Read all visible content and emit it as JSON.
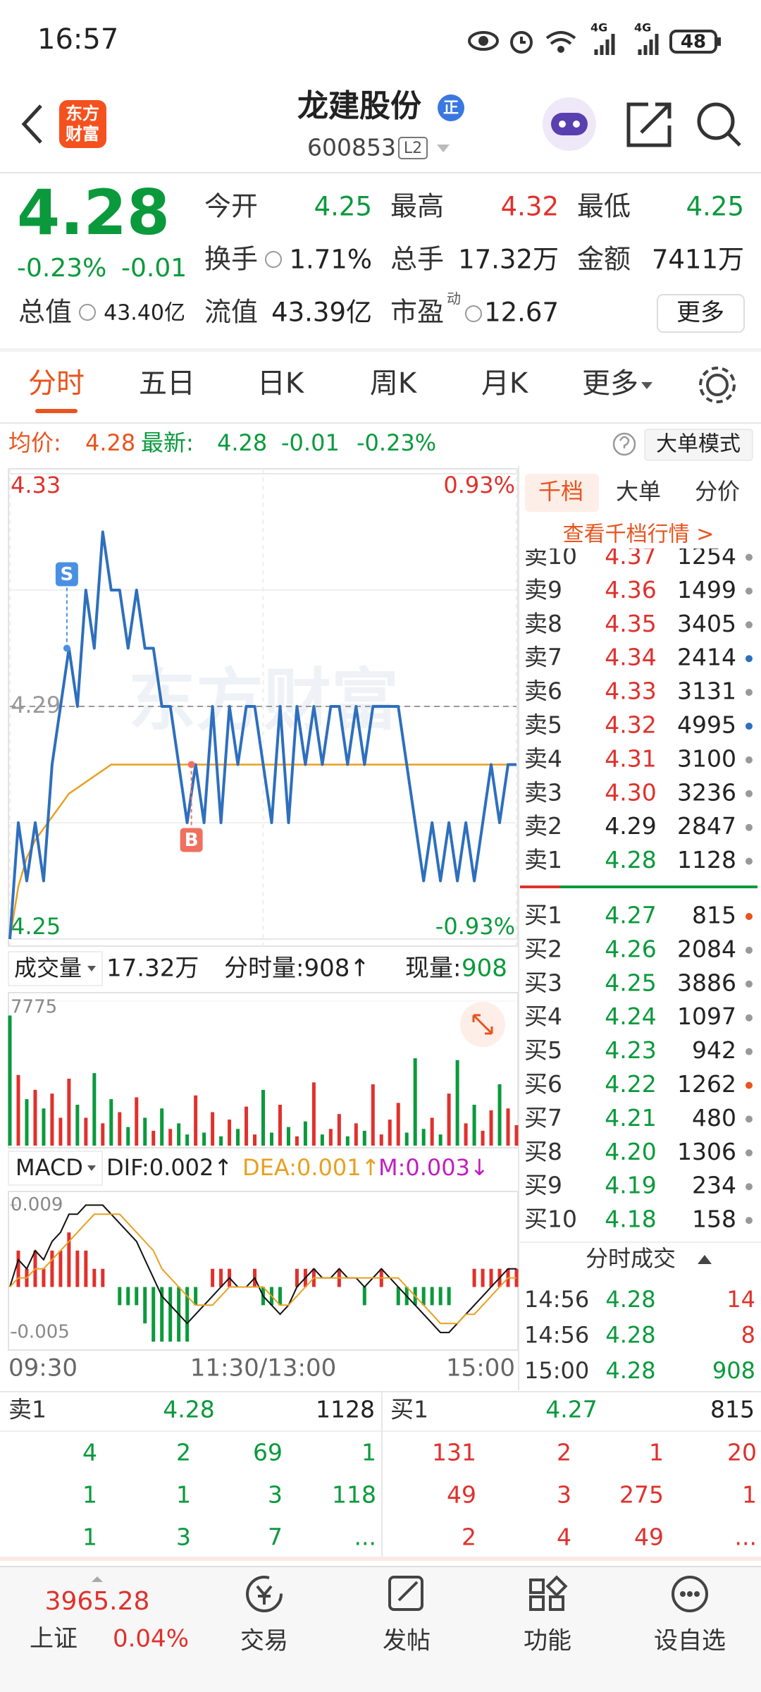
{
  "status_bar": {
    "time": "16:57",
    "network": [
      "4G",
      "4G"
    ],
    "battery": "48"
  },
  "header": {
    "logo": [
      "东方",
      "财富"
    ],
    "title": "龙建股份",
    "badge": "正",
    "code": "600853",
    "level": "L2"
  },
  "quote": {
    "price": "4.28",
    "change_pct": "-0.23%",
    "change": "-0.01",
    "fields": [
      {
        "label": "今开",
        "value": "4.25",
        "color": "#0a9a3c"
      },
      {
        "label": "最高",
        "value": "4.32",
        "color": "#e0312c"
      },
      {
        "label": "最低",
        "value": "4.25",
        "color": "#0a9a3c"
      },
      {
        "label": "换手",
        "value": "1.71%"
      },
      {
        "label": "总手",
        "value": "17.32万"
      },
      {
        "label": "金额",
        "value": "7411万"
      },
      {
        "label": "总值",
        "value": "43.40亿"
      },
      {
        "label": "流值",
        "value": "43.39亿"
      },
      {
        "label": "市盈",
        "sup": "动",
        "value": "12.67"
      }
    ],
    "more": "更多"
  },
  "tabs": {
    "items": [
      "分时",
      "五日",
      "日K",
      "周K",
      "月K",
      "更多"
    ],
    "active": 0
  },
  "info_line": {
    "avg_label": "均价:",
    "avg": "4.28",
    "latest_label": "最新:",
    "latest": "4.28",
    "change": "-0.01",
    "pct": "-0.23%",
    "mode": "大单模式"
  },
  "watermark": "东方财富",
  "chart_data": [
    {
      "type": "line",
      "x": [
        0,
        4,
        8,
        12,
        16,
        20,
        24,
        28,
        32,
        36,
        40,
        44,
        48,
        52,
        56,
        60,
        64,
        68,
        72,
        76,
        80,
        84,
        88,
        92,
        96,
        100,
        104,
        108,
        112,
        116,
        120,
        124,
        128,
        132,
        136,
        140,
        144,
        148,
        152,
        156,
        160,
        164,
        168,
        172,
        176,
        180,
        184,
        188,
        192,
        196,
        200,
        204,
        208,
        212,
        216,
        220,
        224,
        228,
        232,
        236,
        240
      ],
      "xlim": [
        0,
        240
      ],
      "xticks": [
        {
          "value": 0,
          "label": "09:30"
        },
        {
          "value": 120,
          "label": "11:30/13:00"
        },
        {
          "value": 240,
          "label": "15:00"
        }
      ],
      "ylim": [
        4.25,
        4.33
      ],
      "yticks": [
        4.25,
        4.29,
        4.33
      ],
      "y2lim": [
        -0.93,
        0.93
      ],
      "y2ticks": [
        {
          "value": -0.93,
          "label": "-0.93%"
        },
        {
          "value": 0.93,
          "label": "0.93%"
        }
      ],
      "series": [
        {
          "color": "#2e6fbe",
          "values": [
            4.25,
            4.27,
            4.26,
            4.27,
            4.26,
            4.28,
            4.29,
            4.3,
            4.29,
            4.31,
            4.3,
            4.32,
            4.31,
            4.31,
            4.3,
            4.31,
            4.3,
            4.3,
            4.29,
            4.29,
            4.28,
            4.27,
            4.28,
            4.27,
            4.29,
            4.27,
            4.29,
            4.28,
            4.29,
            4.29,
            4.28,
            4.27,
            4.29,
            4.27,
            4.29,
            4.28,
            4.29,
            4.28,
            4.29,
            4.29,
            4.28,
            4.29,
            4.28,
            4.29,
            4.29,
            4.29,
            4.29,
            4.28,
            4.27,
            4.26,
            4.27,
            4.26,
            4.27,
            4.26,
            4.27,
            4.26,
            4.27,
            4.28,
            4.27,
            4.28,
            4.28
          ]
        },
        {
          "color": "#e8a020",
          "values": [
            4.25,
            4.259,
            4.264,
            4.267,
            4.269,
            4.271,
            4.273,
            4.275,
            4.276,
            4.277,
            4.278,
            4.279,
            4.28,
            4.28,
            4.28,
            4.28,
            4.28,
            4.28,
            4.28,
            4.28,
            4.28,
            4.28,
            4.28,
            4.28,
            4.28,
            4.28,
            4.28,
            4.28,
            4.28,
            4.28,
            4.28,
            4.28,
            4.28,
            4.28,
            4.28,
            4.28,
            4.28,
            4.28,
            4.28,
            4.28,
            4.28,
            4.28,
            4.28,
            4.28,
            4.28,
            4.28,
            4.28,
            4.28,
            4.28,
            4.28,
            4.28,
            4.28,
            4.28,
            4.28,
            4.28,
            4.28,
            4.28,
            4.28,
            4.28,
            4.28,
            4.28
          ]
        }
      ],
      "annotations": [
        {
          "label": "S",
          "x": 27,
          "y": 4.3,
          "color": "#4a90e2"
        },
        {
          "label": "B",
          "x": 86,
          "y": 4.28,
          "color": "#f07060"
        }
      ]
    },
    {
      "type": "bar",
      "x": [
        0,
        4,
        8,
        12,
        16,
        20,
        24,
        28,
        32,
        36,
        40,
        44,
        48,
        52,
        56,
        60,
        64,
        68,
        72,
        76,
        80,
        84,
        88,
        92,
        96,
        100,
        104,
        108,
        112,
        116,
        120,
        124,
        128,
        132,
        136,
        140,
        144,
        148,
        152,
        156,
        160,
        164,
        168,
        172,
        176,
        180,
        184,
        188,
        192,
        196,
        200,
        204,
        208,
        212,
        216,
        220,
        224,
        228,
        232,
        236,
        240
      ],
      "xlim": [
        0,
        240
      ],
      "values": [
        7000,
        3800,
        2500,
        3000,
        2000,
        2800,
        1500,
        3600,
        2200,
        1500,
        3900,
        1200,
        2500,
        1800,
        1000,
        2600,
        1500,
        800,
        2000,
        900,
        1200,
        600,
        2700,
        700,
        1800,
        500,
        1400,
        900,
        2100,
        600,
        3000,
        700,
        2200,
        1000,
        500,
        1300,
        3400,
        600,
        900,
        1700,
        500,
        1200,
        800,
        3300,
        600,
        1400,
        2300,
        700,
        4700,
        900,
        1500,
        600,
        2800,
        4600,
        1200,
        2200,
        800,
        1900,
        3300,
        2000,
        1100
      ],
      "up_color": "#e0312c",
      "down_color": "#0a9a3c",
      "ylim": [
        0,
        7775
      ],
      "yticks": [
        7775
      ]
    },
    {
      "type": "macd",
      "x": [
        0,
        4,
        8,
        12,
        16,
        20,
        24,
        28,
        32,
        36,
        40,
        44,
        48,
        52,
        56,
        60,
        64,
        68,
        72,
        76,
        80,
        84,
        88,
        92,
        96,
        100,
        104,
        108,
        112,
        116,
        120,
        124,
        128,
        132,
        136,
        140,
        144,
        148,
        152,
        156,
        160,
        164,
        168,
        172,
        176,
        180,
        184,
        188,
        192,
        196,
        200,
        204,
        208,
        212,
        216,
        220,
        224,
        228,
        232,
        236,
        240
      ],
      "xlim": [
        0,
        240
      ],
      "ylim": [
        -0.0067,
        0.0105
      ],
      "yticks": [
        -0.005,
        0.009
      ],
      "series": [
        {
          "color": "#111111",
          "values": [
            0,
            0.003,
            0.002,
            0.004,
            0.003,
            0.005,
            0.006,
            0.008,
            0.008,
            0.009,
            0.009,
            0.009,
            0.008,
            0.007,
            0.006,
            0.005,
            0.003,
            0.001,
            -0.001,
            -0.002,
            -0.003,
            -0.004,
            -0.003,
            -0.002,
            -0.001,
            0,
            0.001,
            0,
            0,
            0.001,
            -0.001,
            -0.002,
            -0.003,
            -0.002,
            0,
            0.001,
            0.002,
            0.001,
            0.001,
            0.002,
            0.001,
            0.001,
            0,
            0.001,
            0.002,
            0.001,
            0,
            -0.001,
            -0.002,
            -0.003,
            -0.004,
            -0.005,
            -0.005,
            -0.004,
            -0.003,
            -0.002,
            -0.001,
            0,
            0.001,
            0.002,
            0.002
          ]
        },
        {
          "color": "#e8a020",
          "values": [
            0,
            0.001,
            0.001,
            0.002,
            0.002,
            0.003,
            0.004,
            0.005,
            0.006,
            0.007,
            0.008,
            0.008,
            0.008,
            0.008,
            0.007,
            0.006,
            0.005,
            0.004,
            0.002,
            0.001,
            0,
            -0.001,
            -0.002,
            -0.002,
            -0.002,
            -0.001,
            0,
            0,
            0,
            0,
            0,
            -0.001,
            -0.002,
            -0.002,
            -0.001,
            0,
            0.001,
            0.001,
            0.001,
            0.001,
            0.001,
            0.001,
            0.001,
            0.001,
            0.001,
            0.001,
            0.001,
            0,
            -0.001,
            -0.002,
            -0.003,
            -0.004,
            -0.004,
            -0.004,
            -0.003,
            -0.003,
            -0.002,
            -0.001,
            0,
            0.001,
            0.001
          ]
        }
      ],
      "bars": [
        0,
        0.004,
        0.002,
        0.004,
        0.002,
        0.004,
        0.004,
        0.006,
        0.004,
        0.004,
        0.002,
        0.002,
        0,
        -0.002,
        -0.002,
        -0.002,
        -0.004,
        -0.006,
        -0.006,
        -0.006,
        -0.006,
        -0.006,
        -0.002,
        0,
        0.002,
        0.002,
        0.002,
        0,
        0,
        0.002,
        -0.002,
        -0.002,
        -0.002,
        0,
        0.002,
        0.002,
        0.002,
        0,
        0,
        0.002,
        0,
        0,
        -0.002,
        0,
        0.002,
        0,
        -0.002,
        -0.002,
        -0.002,
        -0.002,
        -0.002,
        -0.002,
        -0.002,
        0,
        0,
        0.002,
        0.002,
        0.002,
        0.002,
        0.002,
        0.002
      ],
      "up_color": "#e0312c",
      "down_color": "#0a9a3c"
    }
  ],
  "volume_header": {
    "selector": "成交量",
    "total": "17.32万",
    "minute": "分时量:908↑",
    "now_label": "现量:",
    "now": "908"
  },
  "macd_header": {
    "selector": "MACD",
    "dif": "DIF:0.002↑",
    "dea": "DEA:0.001↑",
    "m": "M:0.003↓"
  },
  "order_book": {
    "tabs": [
      "千档",
      "大单",
      "分价"
    ],
    "active": 0,
    "link": "查看千档行情 >",
    "asks": [
      {
        "label": "卖10",
        "price": "4.37",
        "qty": "1254",
        "color": "#e0312c",
        "dot": "#999999"
      },
      {
        "label": "卖9",
        "price": "4.36",
        "qty": "1499",
        "color": "#e0312c",
        "dot": "#999999"
      },
      {
        "label": "卖8",
        "price": "4.35",
        "qty": "3405",
        "color": "#e0312c",
        "dot": "#999999"
      },
      {
        "label": "卖7",
        "price": "4.34",
        "qty": "2414",
        "color": "#e0312c",
        "dot": "#2e6fbe"
      },
      {
        "label": "卖6",
        "price": "4.33",
        "qty": "3131",
        "color": "#e0312c",
        "dot": "#999999"
      },
      {
        "label": "卖5",
        "price": "4.32",
        "qty": "4995",
        "color": "#e0312c",
        "dot": "#2e6fbe"
      },
      {
        "label": "卖4",
        "price": "4.31",
        "qty": "3100",
        "color": "#e0312c",
        "dot": "#999999"
      },
      {
        "label": "卖3",
        "price": "4.30",
        "qty": "3236",
        "color": "#e0312c",
        "dot": "#999999"
      },
      {
        "label": "卖2",
        "price": "4.29",
        "qty": "2847",
        "color": "#222222",
        "dot": "#999999"
      },
      {
        "label": "卖1",
        "price": "4.28",
        "qty": "1128",
        "color": "#0a9a3c",
        "dot": "#999999"
      }
    ],
    "bids": [
      {
        "label": "买1",
        "price": "4.27",
        "qty": "815",
        "color": "#0a9a3c",
        "dot": "#e8541e"
      },
      {
        "label": "买2",
        "price": "4.26",
        "qty": "2084",
        "color": "#0a9a3c",
        "dot": "#999999"
      },
      {
        "label": "买3",
        "price": "4.25",
        "qty": "3886",
        "color": "#0a9a3c",
        "dot": "#999999"
      },
      {
        "label": "买4",
        "price": "4.24",
        "qty": "1097",
        "color": "#0a9a3c",
        "dot": "#999999"
      },
      {
        "label": "买5",
        "price": "4.23",
        "qty": "942",
        "color": "#0a9a3c",
        "dot": "#999999"
      },
      {
        "label": "买6",
        "price": "4.22",
        "qty": "1262",
        "color": "#0a9a3c",
        "dot": "#e8541e"
      },
      {
        "label": "买7",
        "price": "4.21",
        "qty": "480",
        "color": "#0a9a3c",
        "dot": "#999999"
      },
      {
        "label": "买8",
        "price": "4.20",
        "qty": "1306",
        "color": "#0a9a3c",
        "dot": "#999999"
      },
      {
        "label": "买9",
        "price": "4.19",
        "qty": "234",
        "color": "#0a9a3c",
        "dot": "#999999"
      },
      {
        "label": "买10",
        "price": "4.18",
        "qty": "158",
        "color": "#0a9a3c",
        "dot": "#999999"
      }
    ]
  },
  "trades": {
    "title": "分时成交",
    "rows": [
      {
        "time": "14:56",
        "price": "4.28",
        "qty": "14",
        "qty_color": "#e0312c"
      },
      {
        "time": "14:56",
        "price": "4.28",
        "qty": "8",
        "qty_color": "#e0312c"
      },
      {
        "time": "15:00",
        "price": "4.28",
        "qty": "908",
        "qty_color": "#0a9a3c"
      }
    ]
  },
  "queue": {
    "ask": {
      "label": "卖1",
      "price": "4.28",
      "qty": "1128",
      "orders": [
        [
          "4",
          "2",
          "69",
          "1"
        ],
        [
          "1",
          "1",
          "3",
          "118"
        ],
        [
          "1",
          "3",
          "7",
          "..."
        ]
      ]
    },
    "bid": {
      "label": "买1",
      "price": "4.27",
      "qty": "815",
      "orders": [
        [
          "131",
          "2",
          "1",
          "20"
        ],
        [
          "49",
          "3",
          "275",
          "1"
        ],
        [
          "2",
          "4",
          "49",
          "..."
        ]
      ]
    }
  },
  "nav": {
    "index_value": "3965.28",
    "index_name": "上证",
    "index_change": "0.04%",
    "items": [
      "交易",
      "发帖",
      "功能",
      "设自选"
    ]
  }
}
